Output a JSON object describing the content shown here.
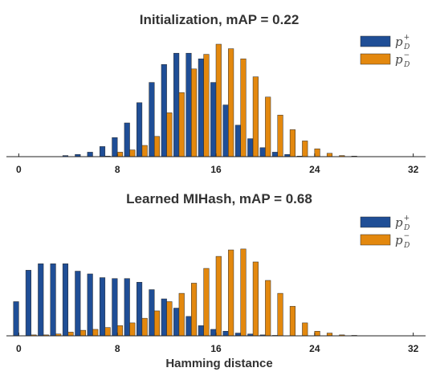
{
  "chart_data": [
    {
      "type": "bar",
      "title": "Initialization, mAP = 0.22",
      "xlabel": "",
      "ylabel": "",
      "xlim": [
        -1,
        33
      ],
      "ylim": [
        0,
        1
      ],
      "xticks": [
        0,
        8,
        16,
        24,
        32
      ],
      "x": [
        0,
        1,
        2,
        3,
        4,
        5,
        6,
        7,
        8,
        9,
        10,
        11,
        12,
        13,
        14,
        15,
        16,
        17,
        18,
        19,
        20,
        21,
        22,
        23,
        24,
        25,
        26,
        27,
        28,
        29,
        30,
        31,
        32
      ],
      "legend_position": "top-right",
      "grid": false,
      "series": [
        {
          "name": "p_D^+",
          "legend_main": "p",
          "legend_sup": "+",
          "legend_sub": "D",
          "color": "#1f4e96",
          "values": [
            0,
            0,
            0,
            0,
            0.01,
            0.02,
            0.04,
            0.09,
            0.17,
            0.3,
            0.48,
            0.66,
            0.82,
            0.92,
            0.92,
            0.87,
            0.66,
            0.46,
            0.28,
            0.16,
            0.08,
            0.04,
            0.02,
            0.005,
            0,
            0,
            0,
            0,
            0,
            0,
            0,
            0,
            0
          ]
        },
        {
          "name": "p_D^-",
          "legend_main": "p",
          "legend_sup": "−",
          "legend_sub": "D",
          "color": "#e3880e",
          "values": [
            0,
            0,
            0,
            0,
            0,
            0,
            0,
            0.005,
            0.04,
            0.06,
            0.1,
            0.18,
            0.39,
            0.57,
            0.78,
            0.91,
            1.0,
            0.96,
            0.87,
            0.71,
            0.53,
            0.37,
            0.24,
            0.14,
            0.07,
            0.03,
            0.01,
            0.005,
            0,
            0,
            0,
            0,
            0
          ]
        }
      ]
    },
    {
      "type": "bar",
      "title": "Learned MIHash, mAP = 0.68",
      "xlabel": "Hamming distance",
      "ylabel": "",
      "xlim": [
        -1,
        33
      ],
      "ylim": [
        0,
        1
      ],
      "xticks": [
        0,
        8,
        16,
        24,
        32
      ],
      "x": [
        0,
        1,
        2,
        3,
        4,
        5,
        6,
        7,
        8,
        9,
        10,
        11,
        12,
        13,
        14,
        15,
        16,
        17,
        18,
        19,
        20,
        21,
        22,
        23,
        24,
        25,
        26,
        27,
        28,
        29,
        30,
        31,
        32
      ],
      "legend_position": "top-right",
      "grid": false,
      "series": [
        {
          "name": "p_D^+",
          "legend_main": "p",
          "legend_sup": "+",
          "legend_sub": "D",
          "color": "#1f4e96",
          "values": [
            0.37,
            0.71,
            0.78,
            0.78,
            0.78,
            0.7,
            0.67,
            0.63,
            0.62,
            0.62,
            0.58,
            0.5,
            0.4,
            0.3,
            0.21,
            0.11,
            0.07,
            0.05,
            0.03,
            0.02,
            0.01,
            0.005,
            0,
            0,
            0,
            0,
            0,
            0,
            0,
            0,
            0,
            0,
            0
          ]
        },
        {
          "name": "p_D^-",
          "legend_main": "p",
          "legend_sup": "−",
          "legend_sub": "D",
          "color": "#e3880e",
          "values": [
            0,
            0.01,
            0.01,
            0.02,
            0.04,
            0.06,
            0.07,
            0.09,
            0.11,
            0.14,
            0.19,
            0.27,
            0.37,
            0.46,
            0.57,
            0.73,
            0.86,
            0.93,
            0.94,
            0.8,
            0.6,
            0.46,
            0.32,
            0.14,
            0.05,
            0.03,
            0.01,
            0.005,
            0,
            0,
            0,
            0,
            0
          ]
        }
      ]
    }
  ]
}
